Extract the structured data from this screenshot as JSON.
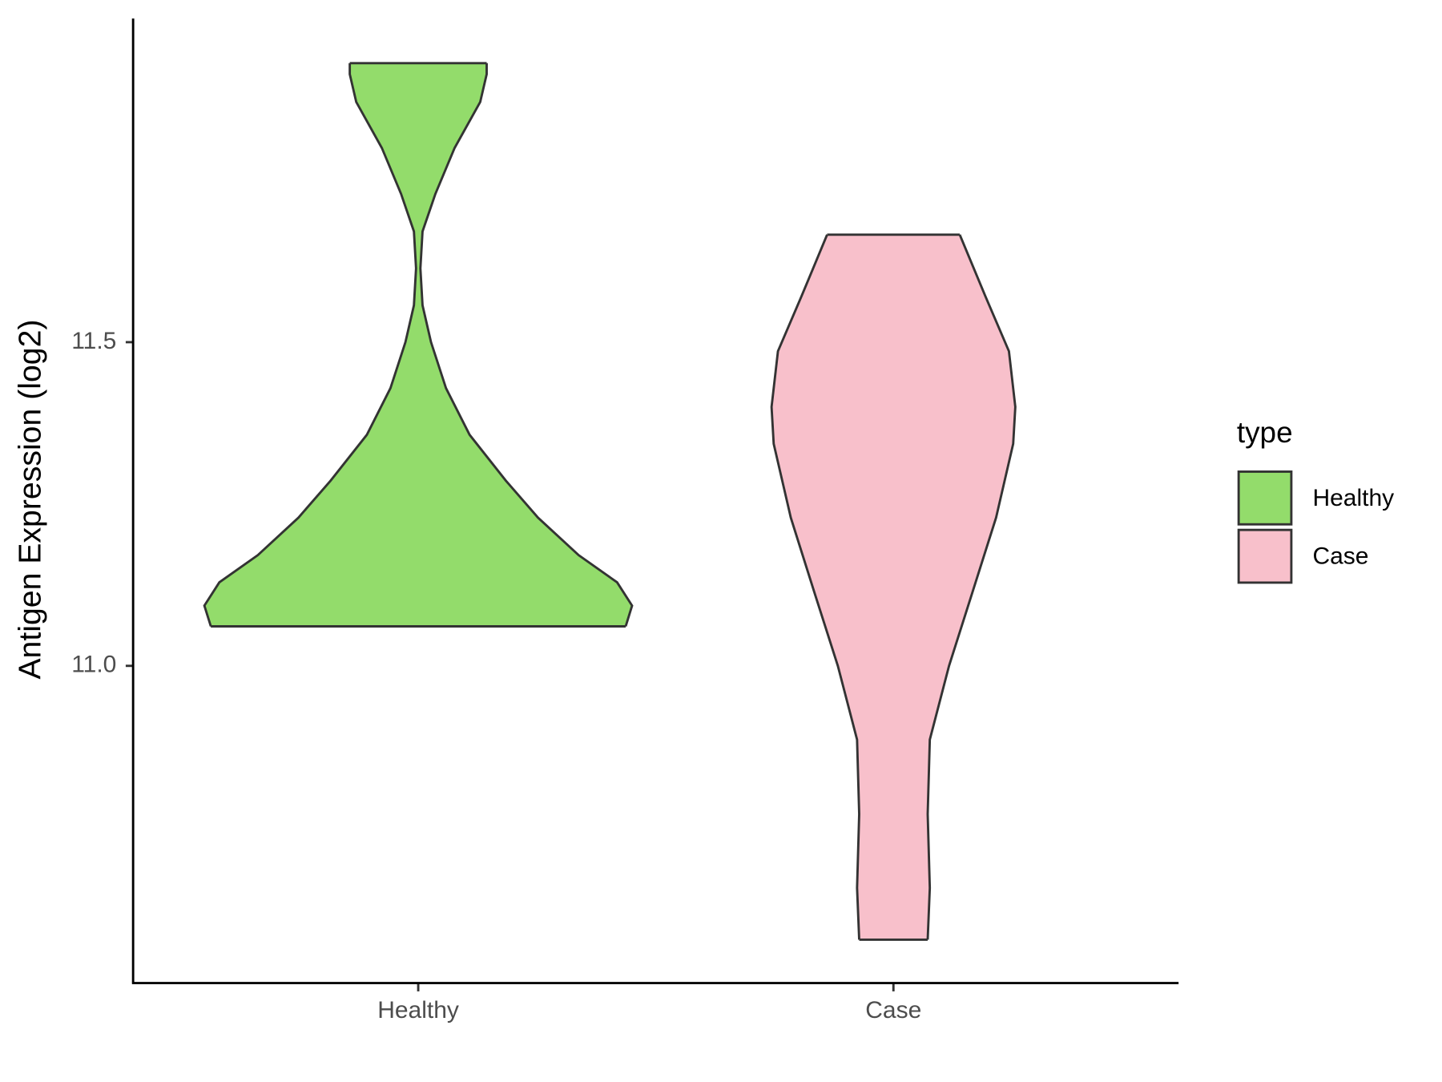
{
  "chart_data": {
    "type": "violin",
    "ylabel": "Antigen Expression (log2)",
    "categories": [
      "Healthy",
      "Case"
    ],
    "legend_title": "type",
    "legend": "right",
    "series": [
      {
        "name": "Healthy",
        "color": "#93dc6b",
        "y": [
          11.061,
          11.093,
          11.129,
          11.171,
          11.229,
          11.286,
          11.357,
          11.429,
          11.5,
          11.557,
          11.614,
          11.671,
          11.729,
          11.8,
          11.871,
          11.914,
          11.931
        ],
        "density": [
          0.97,
          1.0,
          0.93,
          0.75,
          0.56,
          0.41,
          0.24,
          0.13,
          0.06,
          0.02,
          0.01,
          0.02,
          0.08,
          0.17,
          0.29,
          0.32,
          0.32
        ]
      },
      {
        "name": "Case",
        "color": "#f8c0cb",
        "y": [
          10.577,
          10.657,
          10.771,
          10.886,
          11.0,
          11.114,
          11.229,
          11.343,
          11.4,
          11.486,
          11.571,
          11.666
        ],
        "density": [
          0.16,
          0.17,
          0.16,
          0.17,
          0.26,
          0.37,
          0.48,
          0.56,
          0.57,
          0.54,
          0.43,
          0.31
        ]
      }
    ],
    "ylim": [
      10.51,
      12.0
    ],
    "yticks": [
      {
        "value": 11,
        "label": "11.0"
      },
      11.5
    ]
  }
}
